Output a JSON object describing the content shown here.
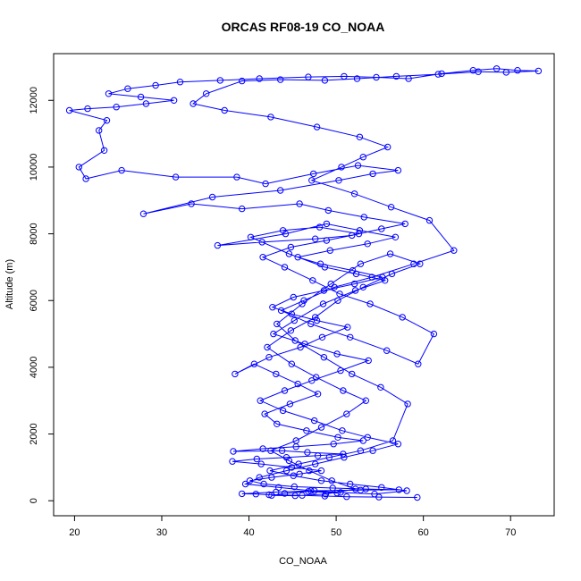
{
  "chart_data": {
    "type": "line",
    "title": "ORCAS RF08-19 CO_NOAA",
    "xlabel": "CO_NOAA",
    "ylabel": "Altitude (m)",
    "xlim": [
      17.6,
      75
    ],
    "ylim": [
      -450,
      13400
    ],
    "x_ticks": [
      20,
      30,
      40,
      50,
      60,
      70
    ],
    "y_ticks": [
      0,
      2000,
      4000,
      6000,
      8000,
      10000,
      12000
    ],
    "grid": false,
    "legend": "none",
    "color": "#0000ff",
    "series": [
      {
        "values": [
          [
            59.3,
            100
          ],
          [
            54.9,
            110
          ],
          [
            51.2,
            120
          ],
          [
            48.7,
            140
          ],
          [
            46.1,
            160
          ],
          [
            42.3,
            180
          ],
          [
            40.8,
            200
          ],
          [
            39.2,
            210
          ],
          [
            43.1,
            260
          ],
          [
            47.5,
            300
          ],
          [
            52.8,
            320
          ],
          [
            57.2,
            330
          ],
          [
            53.4,
            350
          ],
          [
            49.6,
            380
          ],
          [
            45.2,
            420
          ],
          [
            41.7,
            500
          ],
          [
            40.1,
            600
          ],
          [
            42.6,
            700
          ],
          [
            45.8,
            800
          ],
          [
            48.3,
            900
          ],
          [
            44.9,
            1000
          ],
          [
            41.4,
            1100
          ],
          [
            38.1,
            1180
          ],
          [
            40.9,
            1250
          ],
          [
            44.3,
            1300
          ],
          [
            47.9,
            1350
          ],
          [
            50.8,
            1400
          ],
          [
            46.7,
            1450
          ],
          [
            43.8,
            1500
          ],
          [
            38.2,
            1480
          ],
          [
            41.6,
            1560
          ],
          [
            45.4,
            1620
          ],
          [
            49.7,
            1700
          ],
          [
            53.1,
            1800
          ],
          [
            50.2,
            1900
          ],
          [
            46.6,
            2100
          ],
          [
            43.2,
            2300
          ],
          [
            41.8,
            2600
          ],
          [
            44.7,
            2900
          ],
          [
            47.9,
            3200
          ],
          [
            45.6,
            3500
          ],
          [
            43.1,
            3800
          ],
          [
            40.6,
            4100
          ],
          [
            38.4,
            3800
          ],
          [
            42.3,
            4300
          ],
          [
            45.9,
            4600
          ],
          [
            48.4,
            4900
          ],
          [
            51.3,
            5200
          ],
          [
            47.8,
            5400
          ],
          [
            44.9,
            5600
          ],
          [
            42.7,
            5800
          ],
          [
            45.1,
            6100
          ],
          [
            48.6,
            6300
          ],
          [
            52.1,
            6500
          ],
          [
            55.3,
            6700
          ],
          [
            51.9,
            6900
          ],
          [
            48.2,
            7100
          ],
          [
            45.6,
            7300
          ],
          [
            49.3,
            7500
          ],
          [
            53.6,
            7700
          ],
          [
            56.8,
            7900
          ],
          [
            52.7,
            8100
          ],
          [
            48.9,
            8300
          ],
          [
            44.2,
            8000
          ],
          [
            36.4,
            7650
          ],
          [
            41.5,
            7750
          ],
          [
            47.6,
            7850
          ],
          [
            51.8,
            7950
          ],
          [
            55.2,
            8150
          ],
          [
            57.9,
            8300
          ],
          [
            53.2,
            8500
          ],
          [
            49.1,
            8700
          ],
          [
            45.8,
            8900
          ],
          [
            39.2,
            8750
          ],
          [
            33.4,
            8900
          ],
          [
            27.9,
            8600
          ],
          [
            35.8,
            9100
          ],
          [
            43.6,
            9300
          ],
          [
            50.3,
            9600
          ],
          [
            54.2,
            9800
          ],
          [
            57.1,
            9900
          ],
          [
            52.5,
            10050
          ],
          [
            47.4,
            9800
          ],
          [
            41.9,
            9500
          ],
          [
            38.6,
            9700
          ],
          [
            31.6,
            9700
          ],
          [
            25.4,
            9900
          ],
          [
            21.3,
            9650
          ],
          [
            20.5,
            10000
          ],
          [
            23.4,
            10500
          ],
          [
            22.8,
            11100
          ],
          [
            23.7,
            11400
          ],
          [
            19.4,
            11700
          ],
          [
            21.5,
            11750
          ],
          [
            24.8,
            11800
          ],
          [
            28.2,
            11900
          ],
          [
            31.4,
            12000
          ],
          [
            27.6,
            12100
          ],
          [
            23.9,
            12200
          ],
          [
            26.1,
            12350
          ],
          [
            29.3,
            12450
          ],
          [
            32.1,
            12550
          ],
          [
            36.7,
            12600
          ],
          [
            41.2,
            12650
          ],
          [
            46.8,
            12700
          ],
          [
            50.9,
            12720
          ],
          [
            54.6,
            12690
          ],
          [
            58.3,
            12650
          ],
          [
            62.1,
            12800
          ],
          [
            65.7,
            12900
          ],
          [
            68.4,
            12950
          ],
          [
            70.8,
            12900
          ],
          [
            73.2,
            12880
          ],
          [
            69.5,
            12840
          ],
          [
            66.3,
            12860
          ],
          [
            61.7,
            12780
          ],
          [
            56.9,
            12720
          ],
          [
            52.4,
            12650
          ],
          [
            48.7,
            12600
          ],
          [
            43.6,
            12620
          ],
          [
            39.2,
            12580
          ],
          [
            35.1,
            12200
          ],
          [
            33.6,
            11900
          ],
          [
            37.2,
            11700
          ],
          [
            42.5,
            11500
          ],
          [
            47.8,
            11200
          ],
          [
            52.7,
            10900
          ],
          [
            55.9,
            10600
          ],
          [
            53.1,
            10300
          ],
          [
            50.6,
            10000
          ],
          [
            47.2,
            9600
          ],
          [
            52.1,
            9200
          ],
          [
            56.3,
            8800
          ],
          [
            60.7,
            8400
          ],
          [
            63.5,
            7500
          ],
          [
            58.9,
            7100
          ],
          [
            54.1,
            6700
          ],
          [
            49.8,
            6400
          ],
          [
            46.3,
            6000
          ],
          [
            43.7,
            5700
          ],
          [
            47.1,
            5300
          ],
          [
            51.6,
            4900
          ],
          [
            55.8,
            4500
          ],
          [
            59.4,
            4100
          ],
          [
            61.2,
            5000
          ],
          [
            57.6,
            5500
          ],
          [
            53.9,
            5900
          ],
          [
            50.4,
            6200
          ],
          [
            47.3,
            6600
          ],
          [
            44.1,
            7000
          ],
          [
            41.6,
            7300
          ],
          [
            44.8,
            7600
          ],
          [
            48.9,
            7800
          ],
          [
            52.6,
            8000
          ],
          [
            48.1,
            8200
          ],
          [
            43.9,
            8100
          ],
          [
            40.2,
            7900
          ],
          [
            44.6,
            7400
          ],
          [
            48.7,
            7000
          ],
          [
            52.3,
            6800
          ],
          [
            55.6,
            6600
          ],
          [
            52.2,
            6300
          ],
          [
            48.5,
            5900
          ],
          [
            45.2,
            5400
          ],
          [
            42.8,
            5000
          ],
          [
            46.4,
            4700
          ],
          [
            50.1,
            4400
          ],
          [
            53.7,
            4200
          ],
          [
            50.5,
            3900
          ],
          [
            47.2,
            3600
          ],
          [
            44.1,
            3300
          ],
          [
            41.3,
            3000
          ],
          [
            43.9,
            2700
          ],
          [
            47.5,
            2400
          ],
          [
            50.7,
            2100
          ],
          [
            53.6,
            1900
          ],
          [
            57.1,
            1700
          ],
          [
            54.2,
            1500
          ],
          [
            50.9,
            1300
          ],
          [
            47.6,
            1100
          ],
          [
            44.3,
            900
          ],
          [
            41.2,
            700
          ],
          [
            39.6,
            500
          ],
          [
            43.4,
            400
          ],
          [
            47.1,
            300
          ],
          [
            50.5,
            250
          ],
          [
            54.4,
            200
          ],
          [
            58.1,
            300
          ],
          [
            55.2,
            400
          ],
          [
            51.6,
            500
          ],
          [
            48.3,
            600
          ],
          [
            45.1,
            750
          ],
          [
            42.4,
            900
          ],
          [
            45.7,
            1100
          ],
          [
            49.2,
            1300
          ],
          [
            52.8,
            1500
          ],
          [
            56.5,
            1800
          ],
          [
            58.2,
            2900
          ],
          [
            55.1,
            3400
          ],
          [
            51.8,
            3800
          ],
          [
            48.6,
            4300
          ],
          [
            45.3,
            4800
          ],
          [
            43.2,
            5300
          ],
          [
            46.1,
            5900
          ],
          [
            49.4,
            6500
          ],
          [
            52.8,
            7100
          ],
          [
            56.2,
            7400
          ],
          [
            59.6,
            7100
          ],
          [
            56.4,
            6800
          ],
          [
            53.1,
            6400
          ],
          [
            50.2,
            6000
          ],
          [
            47.6,
            5500
          ],
          [
            44.8,
            5100
          ],
          [
            42.1,
            4600
          ],
          [
            44.9,
            4100
          ],
          [
            47.7,
            3700
          ],
          [
            50.8,
            3300
          ],
          [
            53.4,
            3000
          ],
          [
            51.2,
            2600
          ],
          [
            48.3,
            2200
          ],
          [
            45.4,
            1800
          ],
          [
            42.5,
            1500
          ],
          [
            44.6,
            1200
          ],
          [
            46.9,
            900
          ],
          [
            49.5,
            600
          ],
          [
            52.2,
            350
          ],
          [
            48.8,
            200
          ],
          [
            45.3,
            150
          ],
          [
            42.6,
            160
          ],
          [
            44.1,
            220
          ],
          [
            46.8,
            280
          ],
          [
            50.1,
            230
          ]
        ]
      }
    ]
  }
}
